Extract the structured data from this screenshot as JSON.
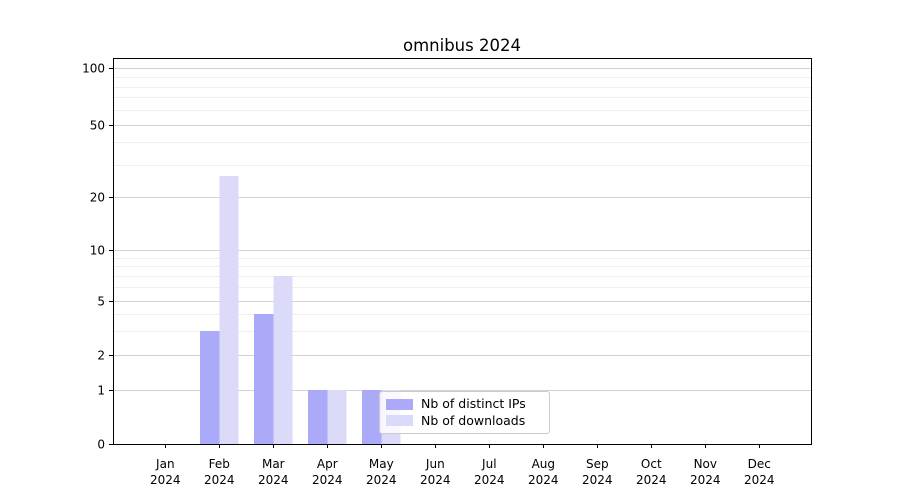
{
  "chart_data": {
    "type": "bar",
    "title": "omnibus 2024",
    "categories": [
      "Jan",
      "Feb",
      "Mar",
      "Apr",
      "May",
      "Jun",
      "Jul",
      "Aug",
      "Sep",
      "Oct",
      "Nov",
      "Dec"
    ],
    "category_year": "2024",
    "series": [
      {
        "name": "Nb of distinct IPs",
        "color": "#aaaaf8",
        "values": [
          0,
          3,
          4,
          1,
          1,
          0,
          0,
          0,
          0,
          0,
          0,
          0
        ]
      },
      {
        "name": "Nb of downloads",
        "color": "#dbdbf9",
        "values": [
          0,
          26,
          7,
          1,
          1,
          0,
          0,
          0,
          0,
          0,
          0,
          0
        ]
      }
    ],
    "xlabel": "",
    "ylabel": "",
    "yaxis": {
      "scale": "quasi-log with linear 0-1 segment",
      "major_ticks": [
        0,
        1,
        2,
        5,
        10,
        20,
        50,
        100
      ],
      "minor_gridlines": [
        3,
        4,
        6,
        7,
        8,
        9,
        30,
        40,
        60,
        70,
        80,
        90
      ],
      "ylim": [
        0,
        110
      ]
    },
    "legend_position": "lower center inside axes",
    "grid": {
      "major_color": "#d2d2d2",
      "minor_color": "#efefef"
    },
    "axis_color": "#000000"
  }
}
